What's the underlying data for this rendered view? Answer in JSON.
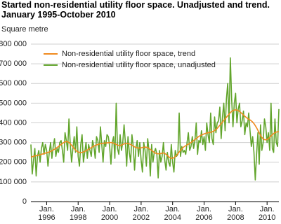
{
  "chart_data": {
    "type": "line",
    "title": "Started non-residential utility floor space. Unadjusted and trend. January 1995-October 2010",
    "y_label": "Square metre",
    "x": [
      "1995-01",
      "1995-02",
      "1995-03",
      "1995-04",
      "1995-05",
      "1995-06",
      "1995-07",
      "1995-08",
      "1995-09",
      "1995-10",
      "1995-11",
      "1995-12",
      "1996-01",
      "1996-02",
      "1996-03",
      "1996-04",
      "1996-05",
      "1996-06",
      "1996-07",
      "1996-08",
      "1996-09",
      "1996-10",
      "1996-11",
      "1996-12",
      "1997-01",
      "1997-02",
      "1997-03",
      "1997-04",
      "1997-05",
      "1997-06",
      "1997-07",
      "1997-08",
      "1997-09",
      "1997-10",
      "1997-11",
      "1997-12",
      "1998-01",
      "1998-02",
      "1998-03",
      "1998-04",
      "1998-05",
      "1998-06",
      "1998-07",
      "1998-08",
      "1998-09",
      "1998-10",
      "1998-11",
      "1998-12",
      "1999-01",
      "1999-02",
      "1999-03",
      "1999-04",
      "1999-05",
      "1999-06",
      "1999-07",
      "1999-08",
      "1999-09",
      "1999-10",
      "1999-11",
      "1999-12",
      "2000-01",
      "2000-02",
      "2000-03",
      "2000-04",
      "2000-05",
      "2000-06",
      "2000-07",
      "2000-08",
      "2000-09",
      "2000-10",
      "2000-11",
      "2000-12",
      "2001-01",
      "2001-02",
      "2001-03",
      "2001-04",
      "2001-05",
      "2001-06",
      "2001-07",
      "2001-08",
      "2001-09",
      "2001-10",
      "2001-11",
      "2001-12",
      "2002-01",
      "2002-02",
      "2002-03",
      "2002-04",
      "2002-05",
      "2002-06",
      "2002-07",
      "2002-08",
      "2002-09",
      "2002-10",
      "2002-11",
      "2002-12",
      "2003-01",
      "2003-02",
      "2003-03",
      "2003-04",
      "2003-05",
      "2003-06",
      "2003-07",
      "2003-08",
      "2003-09",
      "2003-10",
      "2003-11",
      "2003-12",
      "2004-01",
      "2004-02",
      "2004-03",
      "2004-04",
      "2004-05",
      "2004-06",
      "2004-07",
      "2004-08",
      "2004-09",
      "2004-10",
      "2004-11",
      "2004-12",
      "2005-01",
      "2005-02",
      "2005-03",
      "2005-04",
      "2005-05",
      "2005-06",
      "2005-07",
      "2005-08",
      "2005-09",
      "2005-10",
      "2005-11",
      "2005-12",
      "2006-01",
      "2006-02",
      "2006-03",
      "2006-04",
      "2006-05",
      "2006-06",
      "2006-07",
      "2006-08",
      "2006-09",
      "2006-10",
      "2006-11",
      "2006-12",
      "2007-01",
      "2007-02",
      "2007-03",
      "2007-04",
      "2007-05",
      "2007-06",
      "2007-07",
      "2007-08",
      "2007-09",
      "2007-10",
      "2007-11",
      "2007-12",
      "2008-01",
      "2008-02",
      "2008-03",
      "2008-04",
      "2008-05",
      "2008-06",
      "2008-07",
      "2008-08",
      "2008-09",
      "2008-10",
      "2008-11",
      "2008-12",
      "2009-01",
      "2009-02",
      "2009-03",
      "2009-04",
      "2009-05",
      "2009-06",
      "2009-07",
      "2009-08",
      "2009-09",
      "2009-10",
      "2009-11",
      "2009-12",
      "2010-01",
      "2010-02",
      "2010-03",
      "2010-04",
      "2010-05",
      "2010-06",
      "2010-07",
      "2010-08",
      "2010-09",
      "2010-10"
    ],
    "series": [
      {
        "name": "Non-residential utility floor space, trend",
        "color": "#f08a1e",
        "values": [
          225000,
          228000,
          230000,
          232000,
          233000,
          235000,
          236000,
          238000,
          240000,
          242000,
          244000,
          246000,
          248000,
          250000,
          252000,
          255000,
          258000,
          262000,
          266000,
          270000,
          275000,
          280000,
          285000,
          290000,
          295000,
          300000,
          303000,
          305000,
          304000,
          300000,
          294000,
          286000,
          278000,
          270000,
          262000,
          256000,
          252000,
          250000,
          249000,
          250000,
          252000,
          255000,
          258000,
          262000,
          266000,
          270000,
          274000,
          278000,
          282000,
          285000,
          288000,
          290000,
          292000,
          294000,
          295000,
          296000,
          297000,
          298000,
          298000,
          299000,
          300000,
          300000,
          299000,
          297000,
          294000,
          290000,
          287000,
          285000,
          285000,
          287000,
          290000,
          293000,
          295000,
          296000,
          295000,
          293000,
          290000,
          286000,
          282000,
          278000,
          275000,
          273000,
          272000,
          272000,
          273000,
          275000,
          276000,
          277000,
          276000,
          274000,
          270000,
          265000,
          260000,
          255000,
          250000,
          246000,
          244000,
          243000,
          243000,
          244000,
          246000,
          247000,
          245000,
          240000,
          234000,
          228000,
          223000,
          220000,
          220000,
          223000,
          228000,
          235000,
          243000,
          252000,
          260000,
          268000,
          275000,
          280000,
          284000,
          288000,
          292000,
          296000,
          300000,
          305000,
          310000,
          315000,
          320000,
          326000,
          331000,
          335000,
          338000,
          341000,
          344000,
          346000,
          348000,
          350000,
          351000,
          352000,
          354000,
          357000,
          361000,
          366000,
          372000,
          380000,
          388000,
          396000,
          404000,
          412000,
          420000,
          428000,
          436000,
          444000,
          452000,
          458000,
          462000,
          465000,
          466000,
          465000,
          462000,
          458000,
          452000,
          446000,
          440000,
          434000,
          428000,
          423000,
          419000,
          415000,
          410000,
          404000,
          396000,
          386000,
          375000,
          362000,
          348000,
          336000,
          326000,
          319000,
          315000,
          314000,
          316000,
          320000,
          326000,
          333000,
          340000,
          346000,
          350000,
          353000,
          355000,
          356000
        ]
      },
      {
        "name": "Non-residential utility floor space, unadjusted",
        "color": "#62a52c",
        "values": [
          290000,
          140000,
          210000,
          270000,
          130000,
          230000,
          260000,
          200000,
          270000,
          300000,
          240000,
          290000,
          260000,
          180000,
          250000,
          300000,
          220000,
          280000,
          320000,
          230000,
          270000,
          250000,
          300000,
          310000,
          260000,
          200000,
          350000,
          310000,
          260000,
          420000,
          290000,
          200000,
          270000,
          330000,
          250000,
          380000,
          230000,
          180000,
          290000,
          340000,
          200000,
          250000,
          300000,
          220000,
          290000,
          260000,
          230000,
          310000,
          280000,
          220000,
          330000,
          310000,
          250000,
          380000,
          290000,
          200000,
          310000,
          280000,
          340000,
          330000,
          280000,
          190000,
          300000,
          330000,
          220000,
          500000,
          270000,
          240000,
          340000,
          260000,
          300000,
          390000,
          300000,
          180000,
          330000,
          250000,
          200000,
          340000,
          280000,
          160000,
          270000,
          310000,
          230000,
          300000,
          210000,
          150000,
          300000,
          260000,
          180000,
          320000,
          260000,
          130000,
          290000,
          200000,
          250000,
          270000,
          240000,
          120000,
          260000,
          200000,
          230000,
          300000,
          210000,
          160000,
          250000,
          200000,
          180000,
          290000,
          200000,
          150000,
          260000,
          230000,
          240000,
          450000,
          230000,
          280000,
          250000,
          260000,
          240000,
          300000,
          350000,
          260000,
          280000,
          330000,
          270000,
          310000,
          400000,
          240000,
          310000,
          300000,
          360000,
          290000,
          330000,
          260000,
          400000,
          340000,
          300000,
          450000,
          320000,
          290000,
          430000,
          350000,
          400000,
          410000,
          480000,
          320000,
          430000,
          500000,
          360000,
          520000,
          600000,
          400000,
          730000,
          520000,
          380000,
          500000,
          550000,
          400000,
          470000,
          500000,
          380000,
          410000,
          460000,
          340000,
          400000,
          380000,
          450000,
          360000,
          280000,
          330000,
          250000,
          110000,
          240000,
          350000,
          190000,
          390000,
          260000,
          300000,
          420000,
          380000,
          300000,
          350000,
          260000,
          500000,
          270000,
          250000,
          420000,
          300000,
          280000,
          470000
        ]
      }
    ],
    "xlim": [
      "1995-01",
      "2010-10"
    ],
    "xticks": [
      {
        "value": "1996-01",
        "label": [
          "Jan.",
          "1996"
        ]
      },
      {
        "value": "1998-01",
        "label": [
          "Jan.",
          "1998"
        ]
      },
      {
        "value": "2000-01",
        "label": [
          "Jan.",
          "2000"
        ]
      },
      {
        "value": "2002-01",
        "label": [
          "Jan.",
          "2002"
        ]
      },
      {
        "value": "2004-01",
        "label": [
          "Jan.",
          "2004"
        ]
      },
      {
        "value": "2006-01",
        "label": [
          "Jan.",
          "2006"
        ]
      },
      {
        "value": "2008-01",
        "label": [
          "Jan.",
          "2008"
        ]
      },
      {
        "value": "2010-01",
        "label": [
          "Jan.",
          "2010"
        ]
      }
    ],
    "ylim": [
      0,
      800000
    ],
    "yticks": [
      {
        "value": 0,
        "label": "0"
      },
      {
        "value": 100000,
        "label": "100 000"
      },
      {
        "value": 200000,
        "label": "200 000"
      },
      {
        "value": 300000,
        "label": "300 000"
      },
      {
        "value": 400000,
        "label": "400 000"
      },
      {
        "value": 500000,
        "label": "500 000"
      },
      {
        "value": 600000,
        "label": "600 000"
      },
      {
        "value": 700000,
        "label": "700 000"
      },
      {
        "value": 800000,
        "label": "800 000"
      }
    ],
    "grid": true,
    "legend": "upper-left"
  }
}
